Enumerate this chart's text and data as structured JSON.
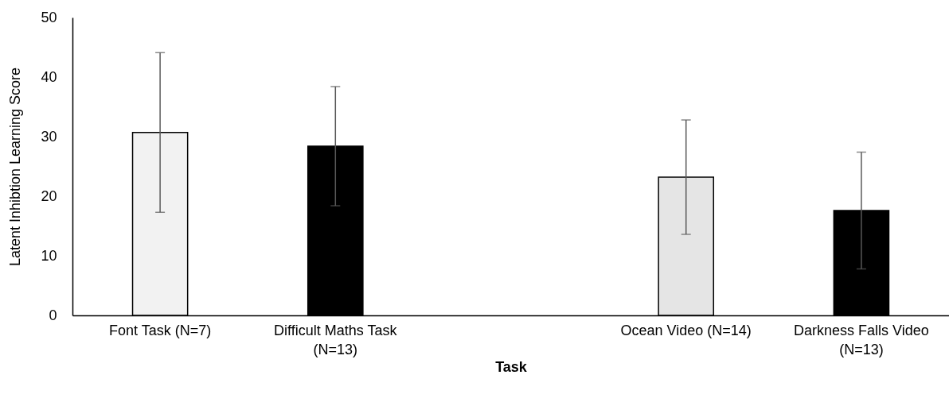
{
  "chart_data": {
    "type": "bar",
    "xlabel": "Task",
    "ylabel": "Latent Inhibtion Learning Score",
    "categories": [
      "Font Task (N=7)",
      "Difficult Maths Task (N=13)",
      null,
      "Ocean Video (N=14)",
      "Darkness Falls Video (N=13)"
    ],
    "values": [
      30.7,
      28.4,
      null,
      23.2,
      17.6
    ],
    "errors": [
      13.4,
      10,
      null,
      9.6,
      9.8
    ],
    "colors": [
      "#f2f2f2",
      "#000000",
      null,
      "#e5e5e5",
      "#000000"
    ],
    "ylim": [
      0,
      50
    ],
    "yticks": [
      0,
      10,
      20,
      30,
      40,
      50
    ]
  }
}
